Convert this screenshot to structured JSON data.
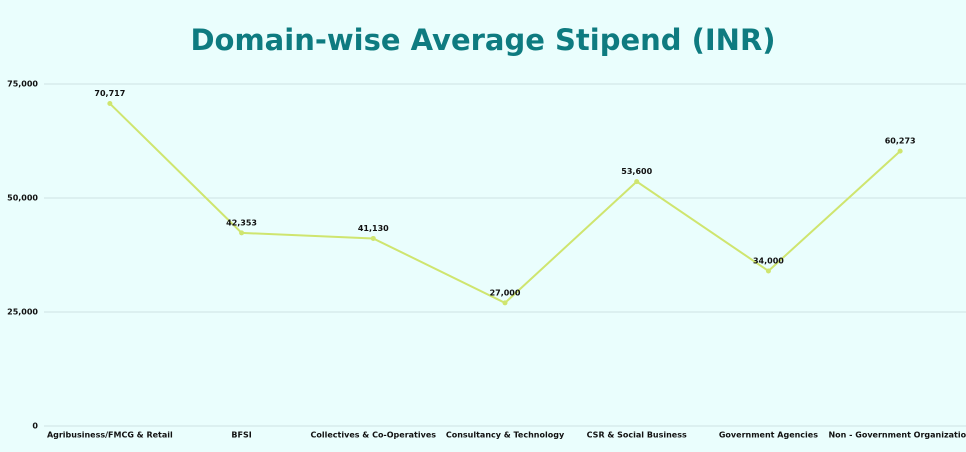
{
  "chart_data": {
    "type": "line",
    "title": "Domain-wise Average Stipend (INR)",
    "categories": [
      "Agribusiness/FMCG & Retail",
      "BFSI",
      "Collectives & Co-Operatives",
      "Consultancy & Technology",
      "CSR & Social Business",
      "Government Agencies",
      "Non - Government Organization"
    ],
    "values": [
      70717,
      42353,
      41130,
      27000,
      53600,
      34000,
      60273
    ],
    "value_labels": [
      "70,717",
      "42,353",
      "41,130",
      "27,000",
      "53,600",
      "34,000",
      "60,273"
    ],
    "color": "#cfe56f",
    "ylim": [
      0,
      75000
    ],
    "yticks": [
      0,
      {
        "value": 25000,
        "label": "25,000"
      },
      {
        "value": 50000,
        "label": "50,000"
      },
      {
        "value": 75000,
        "label": "75,000"
      }
    ],
    "grid": true
  }
}
